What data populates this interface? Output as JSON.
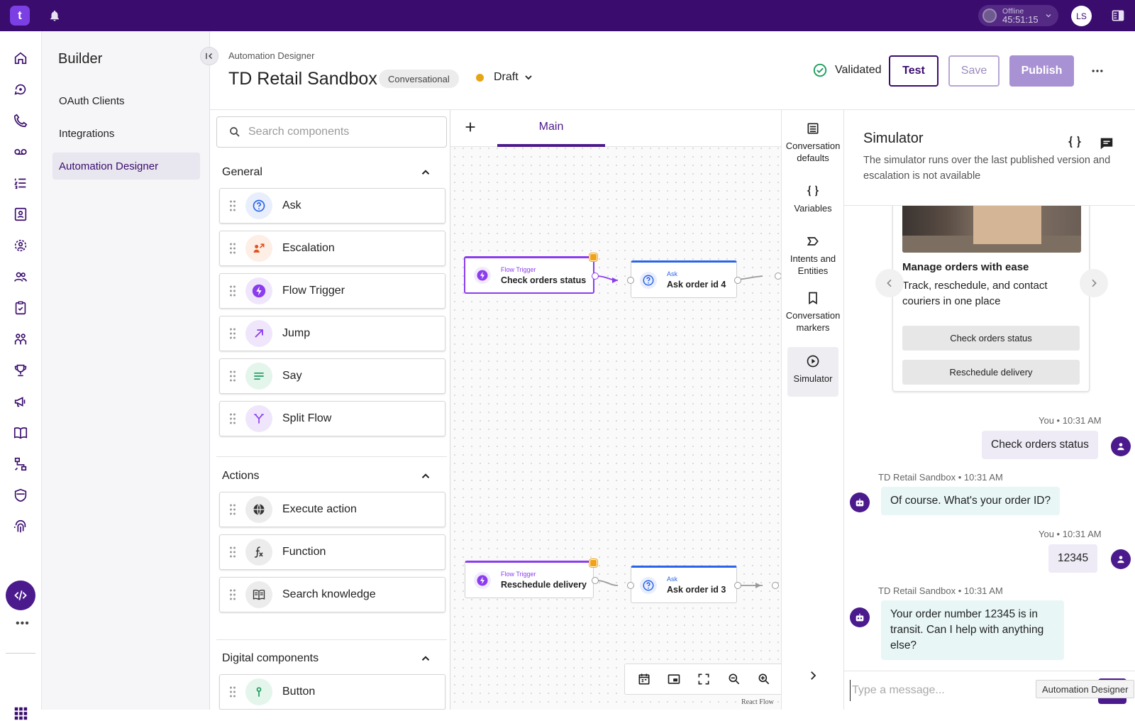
{
  "topbar": {
    "logo_letter": "t",
    "status_label": "Offline",
    "status_time": "45:51:15",
    "user_initials": "LS"
  },
  "builder": {
    "title": "Builder",
    "items": [
      {
        "label": "OAuth Clients",
        "active": false
      },
      {
        "label": "Integrations",
        "active": false
      },
      {
        "label": "Automation Designer",
        "active": true
      }
    ]
  },
  "header": {
    "breadcrumb": "Automation Designer",
    "title": "TD Retail Sandbox",
    "chip": "Conversational",
    "status": "Draft",
    "validated_label": "Validated",
    "test_label": "Test",
    "save_label": "Save",
    "publish_label": "Publish"
  },
  "components": {
    "search_placeholder": "Search components",
    "sections": {
      "general": "General",
      "actions": "Actions",
      "digital": "Digital components"
    },
    "general_items": [
      "Ask",
      "Escalation",
      "Flow Trigger",
      "Jump",
      "Say",
      "Split Flow"
    ],
    "action_items": [
      "Execute action",
      "Function",
      "Search knowledge"
    ],
    "digital_items": [
      "Button"
    ]
  },
  "canvas": {
    "tab_main": "Main",
    "nodes": [
      {
        "type": "Flow Trigger",
        "title": "Check orders status"
      },
      {
        "type": "Ask",
        "title": "Ask order id 4"
      },
      {
        "type": "Flow Trigger",
        "title": "Reschedule delivery"
      },
      {
        "type": "Ask",
        "title": "Ask order id 3"
      }
    ],
    "attribution": "React Flow"
  },
  "tools": {
    "conversation_defaults": "Conversation defaults",
    "variables": "Variables",
    "intents": "Intents and Entities",
    "markers": "Conversation markers",
    "simulator": "Simulator"
  },
  "simulator": {
    "title": "Simulator",
    "description": "The simulator runs over the last published version and escalation is not available",
    "card": {
      "title": "Manage orders with ease",
      "text": "Track, reschedule, and contact couriers in one place",
      "buttons": [
        "Check orders status",
        "Reschedule delivery"
      ]
    },
    "messages": [
      {
        "from": "user",
        "meta": "You • 10:31 AM",
        "text": "Check orders status"
      },
      {
        "from": "bot",
        "meta": "TD Retail Sandbox • 10:31 AM",
        "text": "Of course. What's your order ID?"
      },
      {
        "from": "user",
        "meta": "You • 10:31 AM",
        "text": "12345"
      },
      {
        "from": "bot",
        "meta": "TD Retail Sandbox • 10:31 AM",
        "text": "Your order number 12345 is in transit. Can I help with anything else?"
      }
    ],
    "input_placeholder": "Type a message..."
  },
  "tooltip": "Automation Designer",
  "colors": {
    "brand": "#3a0c6e",
    "accent": "#8b3dee",
    "ask_blue": "#2a64e8",
    "draft_dot": "#e6a516",
    "validated": "#1a9b5c"
  }
}
